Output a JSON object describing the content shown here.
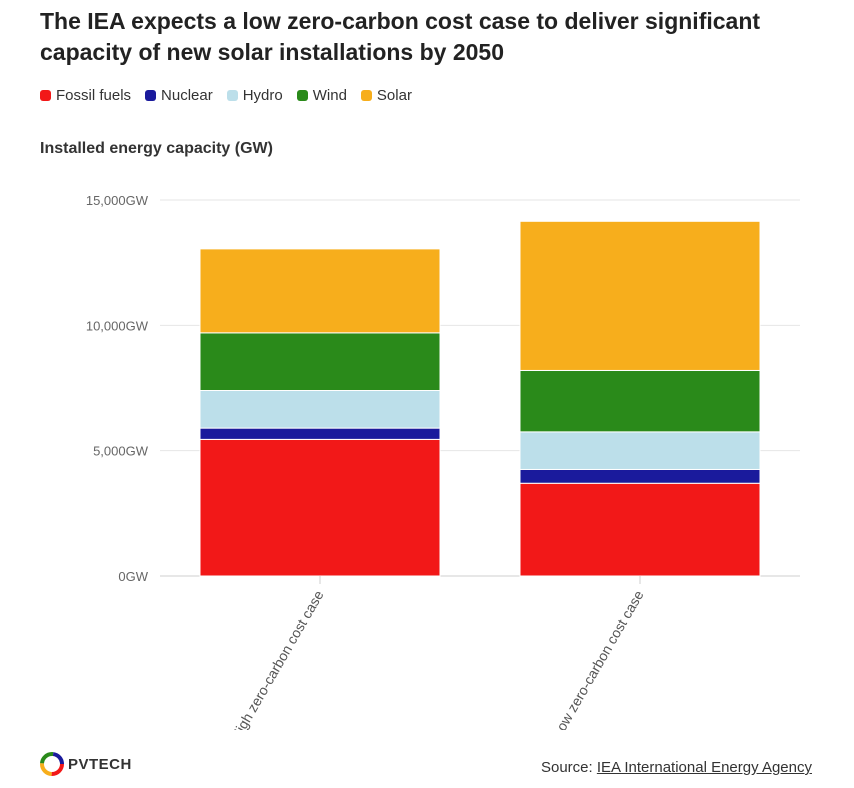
{
  "title": "The IEA expects a low zero-carbon cost case to deliver significant capacity of new solar installations by 2050",
  "legend": [
    {
      "label": "Fossil fuels",
      "color": "#f21818"
    },
    {
      "label": "Nuclear",
      "color": "#1a1a9c"
    },
    {
      "label": "Hydro",
      "color": "#bcdfea"
    },
    {
      "label": "Wind",
      "color": "#2a8a1a"
    },
    {
      "label": "Solar",
      "color": "#f7ae1c"
    }
  ],
  "logo": {
    "text": "PVTECH",
    "icon": "pvtech-logo-icon"
  },
  "source": {
    "prefix": "Source: ",
    "link_text": "IEA International Energy Agency"
  },
  "chart_data": {
    "type": "bar",
    "stacked": true,
    "title": "Installed energy capacity (GW)",
    "categories": [
      "High zero-carbon cost case",
      "Low zero-carbon cost case"
    ],
    "series": [
      {
        "name": "Fossil fuels",
        "color": "#f21818",
        "values": [
          5450,
          3700
        ]
      },
      {
        "name": "Nuclear",
        "color": "#1a1a9c",
        "values": [
          450,
          550
        ]
      },
      {
        "name": "Hydro",
        "color": "#bcdfea",
        "values": [
          1500,
          1500
        ]
      },
      {
        "name": "Wind",
        "color": "#2a8a1a",
        "values": [
          2300,
          2450
        ]
      },
      {
        "name": "Solar",
        "color": "#f7ae1c",
        "values": [
          3350,
          5950
        ]
      }
    ],
    "ylim": [
      0,
      15000
    ],
    "yticks": [
      0,
      5000,
      10000,
      15000
    ],
    "ytick_labels": [
      "0GW",
      "5,000GW",
      "10,000GW",
      "15,000GW"
    ],
    "grid": true,
    "legend_position": "top-left"
  }
}
